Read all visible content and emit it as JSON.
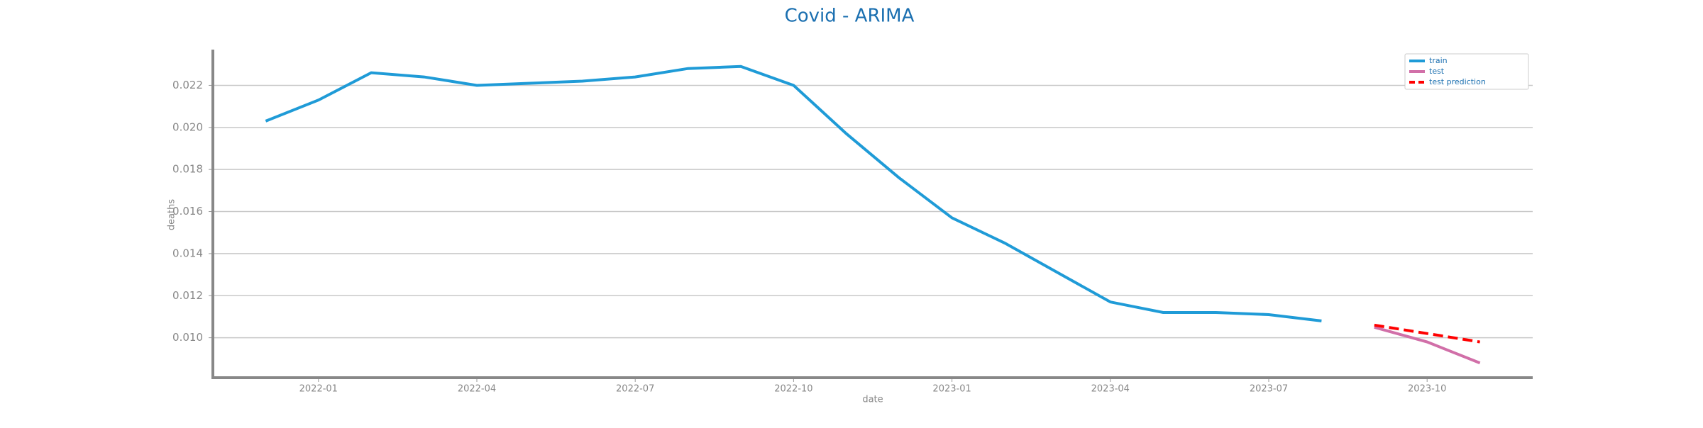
{
  "chart_data": {
    "type": "line",
    "title": "Covid - ARIMA",
    "x_label": "date",
    "y_label": "deaths",
    "series": [
      {
        "name": "train",
        "color": "#1f9bd7",
        "dash": false,
        "x": [
          "2021-12",
          "2022-01",
          "2022-02",
          "2022-03",
          "2022-04",
          "2022-05",
          "2022-06",
          "2022-07",
          "2022-08",
          "2022-09",
          "2022-10",
          "2022-11",
          "2022-12",
          "2023-01",
          "2023-02",
          "2023-03",
          "2023-04",
          "2023-05",
          "2023-06",
          "2023-07",
          "2023-08"
        ],
        "values": [
          0.0203,
          0.0213,
          0.0226,
          0.0224,
          0.022,
          0.0221,
          0.0222,
          0.0224,
          0.0228,
          0.0229,
          0.022,
          0.0197,
          0.0176,
          0.0157,
          0.0145,
          0.0131,
          0.0117,
          0.0112,
          0.0112,
          0.0111,
          0.0108
        ]
      },
      {
        "name": "test",
        "color": "#d16fa8",
        "dash": false,
        "x": [
          "2023-09",
          "2023-10",
          "2023-11"
        ],
        "values": [
          0.0105,
          0.0098,
          0.0088
        ]
      },
      {
        "name": "test prediction",
        "color": "#ff0000",
        "dash": true,
        "x": [
          "2023-09",
          "2023-10",
          "2023-11"
        ],
        "values": [
          0.0106,
          0.0102,
          0.0098
        ]
      }
    ],
    "xlim": [
      "2021-11",
      "2023-12"
    ],
    "xticks": [
      "2022-01",
      "2022-04",
      "2022-07",
      "2022-10",
      "2023-01",
      "2023-04",
      "2023-07",
      "2023-10"
    ],
    "ylim": [
      0.0081,
      0.0237
    ],
    "yticks": [
      {
        "value": 0.01,
        "label": "0.010"
      },
      {
        "value": 0.012,
        "label": "0.012"
      },
      {
        "value": 0.014,
        "label": "0.014"
      },
      {
        "value": 0.016,
        "label": "0.016"
      },
      {
        "value": 0.018,
        "label": "0.018"
      },
      {
        "value": 0.02,
        "label": "0.020"
      },
      {
        "value": 0.022,
        "label": "0.022"
      }
    ],
    "grid": true,
    "legend": "upper right"
  }
}
